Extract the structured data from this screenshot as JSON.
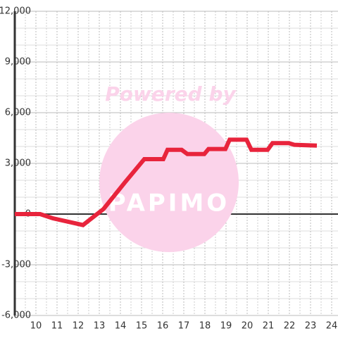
{
  "chart_data": {
    "type": "line",
    "watermark": "Powered by",
    "logo": "PAPIMO",
    "x": [
      9,
      10.2,
      10.8,
      12.23,
      13.2,
      14.23,
      15.13,
      16.03,
      16.23,
      16.9,
      17.17,
      17.97,
      18.17,
      18.97,
      19.17,
      19.97,
      20.2,
      20.97,
      21.2,
      21.97,
      22.23,
      23.3
    ],
    "series": [
      {
        "color": "#e8243c",
        "values": [
          0,
          0,
          -250,
          -650,
          300,
          1900,
          3250,
          3250,
          3800,
          3800,
          3550,
          3550,
          3850,
          3850,
          4400,
          4400,
          3800,
          3800,
          4200,
          4200,
          4100,
          4050
        ]
      }
    ],
    "xlim": [
      9,
      24.3
    ],
    "xticks": [
      10,
      11,
      12,
      13,
      14,
      15,
      16,
      17,
      18,
      19,
      20,
      21,
      22,
      23,
      24
    ],
    "xminorticks": [
      9.5,
      10.5,
      11.5,
      12.5,
      13.5,
      14.5,
      15.5,
      16.5,
      17.5,
      18.5,
      19.5,
      20.5,
      21.5,
      22.5,
      23.5
    ],
    "ylim": [
      -6000,
      12000
    ],
    "yticks": [
      {
        "value": -6000,
        "label": "-6,000"
      },
      {
        "value": -3000,
        "label": "-3,000"
      },
      0,
      {
        "value": 3000,
        "label": "3,000"
      },
      {
        "value": 6000,
        "label": "6,000"
      },
      {
        "value": 9000,
        "label": "9,000"
      },
      {
        "value": 12000,
        "label": "12,000"
      }
    ],
    "yminorticks": [
      -5000,
      -4000,
      -2000,
      -1000,
      1000,
      2000,
      4000,
      5000,
      7000,
      8000,
      10000,
      11000
    ],
    "grid": true
  }
}
